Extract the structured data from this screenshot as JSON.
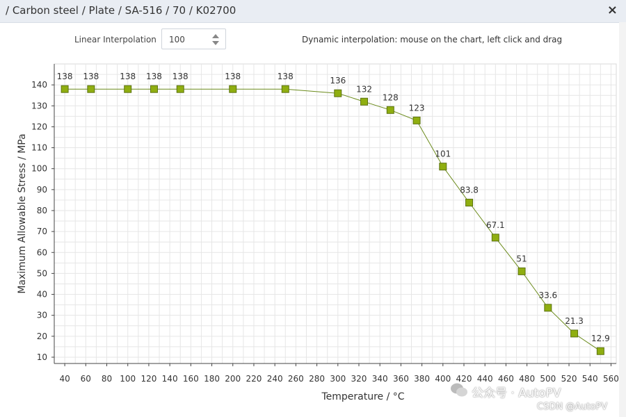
{
  "window": {
    "title": "/ Carbon steel / Plate / SA-516 / 70 / K02700",
    "close_glyph": "×"
  },
  "toolbar": {
    "interp_label": "Linear Interpolation",
    "interp_value": "100",
    "dynamic_hint": "Dynamic interpolation: mouse on the chart, left click and drag"
  },
  "watermarks": {
    "wechat": "公众号 · AutoPV",
    "csdn": "CSDN @AutoPV"
  },
  "chart_data": {
    "type": "line",
    "title": "",
    "xlabel": "Temperature / °C",
    "ylabel": "Maximum Allowable Stress / MPa",
    "xlim": [
      30,
      565
    ],
    "ylim": [
      7,
      150
    ],
    "xticks": [
      40,
      60,
      80,
      100,
      120,
      140,
      160,
      180,
      200,
      220,
      240,
      260,
      280,
      300,
      320,
      340,
      360,
      380,
      400,
      420,
      440,
      460,
      480,
      500,
      520,
      540,
      560
    ],
    "yticks": [
      10,
      20,
      30,
      40,
      50,
      60,
      70,
      80,
      90,
      100,
      110,
      120,
      130,
      140
    ],
    "grid": true,
    "color": "#8fae10",
    "line_color": "#6a8a1a",
    "series": [
      {
        "name": "Maximum Allowable Stress",
        "x": [
          40,
          65,
          100,
          125,
          150,
          200,
          250,
          300,
          325,
          350,
          375,
          400,
          425,
          450,
          475,
          500,
          525,
          550
        ],
        "y": [
          138,
          138,
          138,
          138,
          138,
          138,
          138,
          136,
          132,
          128,
          123,
          101,
          83.8,
          67.1,
          51,
          33.6,
          21.3,
          12.9
        ],
        "labels": [
          "138",
          "138",
          "138",
          "138",
          "138",
          "138",
          "138",
          "136",
          "132",
          "128",
          "123",
          "101",
          "83.8",
          "67.1",
          "51",
          "33.6",
          "21.3",
          "12.9"
        ]
      }
    ]
  }
}
